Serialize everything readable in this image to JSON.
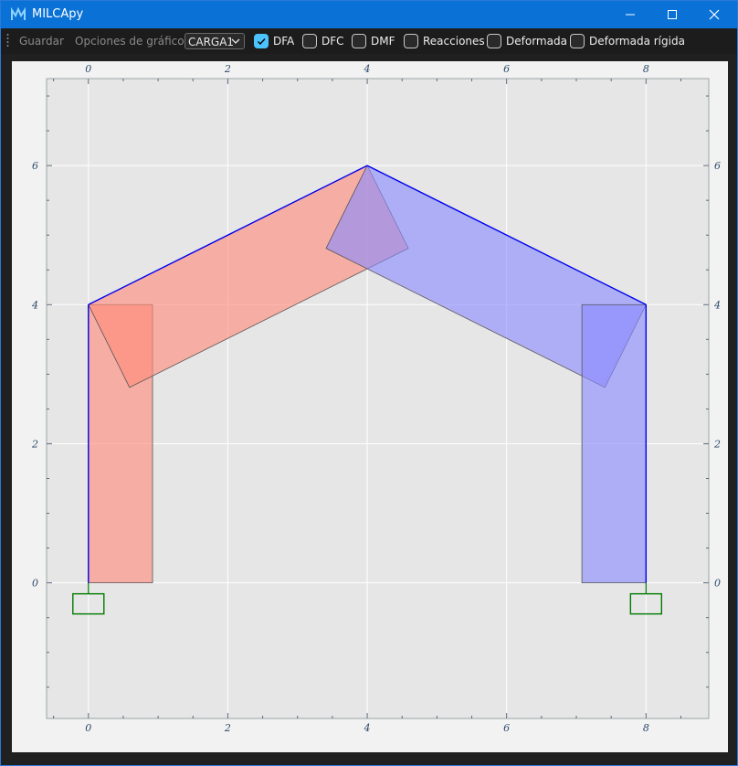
{
  "window": {
    "title": "MILCApy",
    "icon": "milcapy-logo-icon",
    "accent": "#0a72d6"
  },
  "toolbar": {
    "save_label": "Guardar",
    "options_label": "Opciones de gráfico",
    "load_combo": {
      "selected": "CARGA1"
    },
    "checkboxes": [
      {
        "label": "DFA",
        "checked": true
      },
      {
        "label": "DFC",
        "checked": false
      },
      {
        "label": "DMF",
        "checked": false
      },
      {
        "label": "Reacciones",
        "checked": false
      },
      {
        "label": "Deformada",
        "checked": false
      },
      {
        "label": "Deformada rígida",
        "checked": false
      }
    ]
  },
  "plot": {
    "x_ticks": [
      "0",
      "2",
      "4",
      "6",
      "8"
    ],
    "y_ticks": [
      "0",
      "2",
      "4",
      "6"
    ],
    "xlim": [
      -0.6,
      8.9
    ],
    "ylim": [
      -1.95,
      7.25
    ],
    "colors": {
      "background": "#e6e6e6",
      "grid": "#ffffff",
      "frame": "#0000ee",
      "support": "#007a00",
      "positive": "#ff8a7a",
      "negative": "#8a8aff"
    },
    "nodes": [
      [
        0,
        0
      ],
      [
        0,
        4
      ],
      [
        4,
        6
      ],
      [
        8,
        4
      ],
      [
        8,
        0
      ]
    ],
    "members": [
      [
        0,
        1
      ],
      [
        1,
        2
      ],
      [
        2,
        3
      ],
      [
        3,
        4
      ]
    ],
    "supports": [
      [
        0,
        0
      ],
      [
        8,
        0
      ]
    ],
    "axial_force_diagram": [
      {
        "sign": "positive",
        "points": [
          [
            0,
            0
          ],
          [
            0,
            4
          ],
          [
            0.92,
            4
          ],
          [
            0.92,
            0
          ]
        ]
      },
      {
        "sign": "positive",
        "points": [
          [
            0,
            4
          ],
          [
            4,
            6
          ],
          [
            4.59,
            4.81
          ],
          [
            0.59,
            2.81
          ]
        ]
      },
      {
        "sign": "negative",
        "points": [
          [
            4,
            6
          ],
          [
            8,
            4
          ],
          [
            7.41,
            2.81
          ],
          [
            3.41,
            4.81
          ]
        ]
      },
      {
        "sign": "negative",
        "points": [
          [
            8,
            4
          ],
          [
            8,
            0
          ],
          [
            7.08,
            0
          ],
          [
            7.08,
            4
          ]
        ]
      }
    ]
  }
}
